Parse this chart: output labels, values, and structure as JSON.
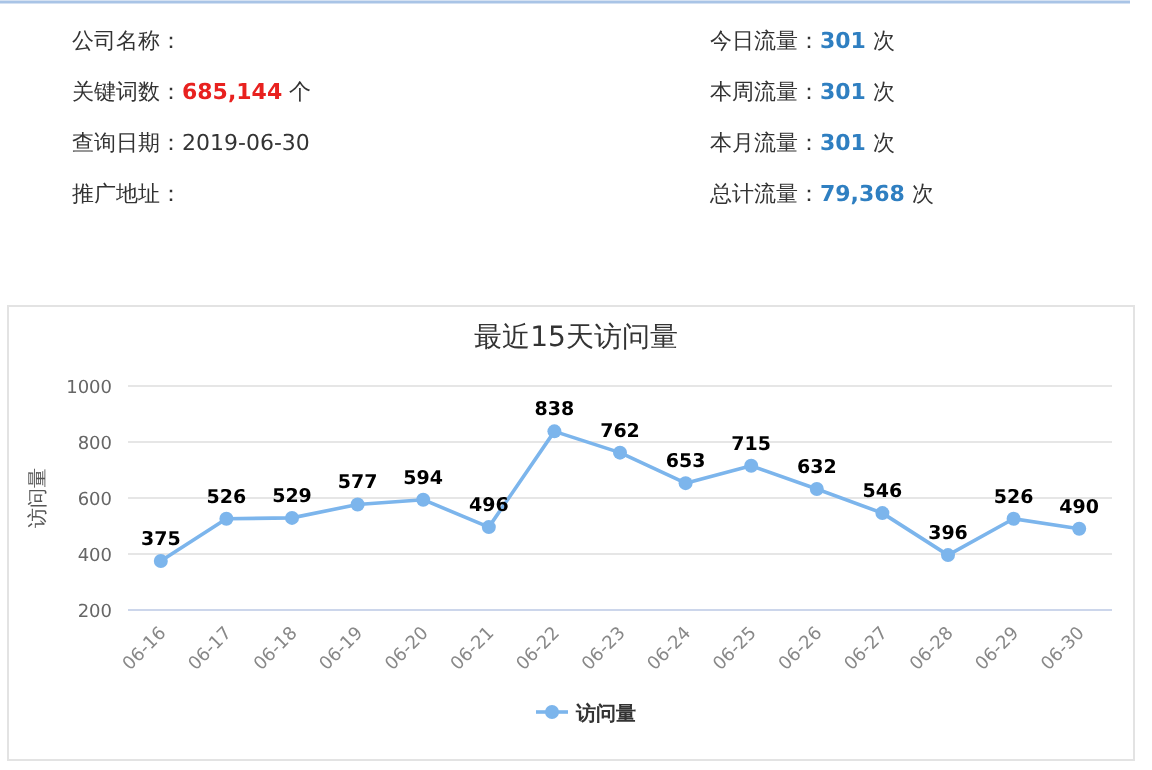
{
  "chart_data": [
    {
      "type": "other",
      "annotations": [
        "公司名称：",
        "今日流量：**301** 次",
        "关键词数：**685,144** 个",
        "本周流量：**301** 次",
        "查询日期：2019-06-30",
        "本月流量：**301** 次",
        "推广地址：",
        "总计流量：**79,368** 次"
      ]
    },
    {
      "type": "line",
      "title": "最近15天访问量",
      "ylabel": "访问量",
      "categories": [
        "06-16",
        "06-17",
        "06-18",
        "06-19",
        "06-20",
        "06-21",
        "06-22",
        "06-23",
        "06-24",
        "06-25",
        "06-26",
        "06-27",
        "06-28",
        "06-29",
        "06-30"
      ],
      "series": [
        {
          "name": "访问量",
          "color": "#7cb5ec",
          "values": [
            375,
            526,
            529,
            577,
            594,
            496,
            838,
            762,
            653,
            715,
            632,
            546,
            396,
            526,
            490
          ]
        }
      ],
      "ylim": [
        200,
        1000
      ],
      "yticks": [
        200,
        400,
        600,
        800,
        1000
      ],
      "grid": "y",
      "legend": "bottom",
      "marker": "circle",
      "data_labels": true
    }
  ]
}
